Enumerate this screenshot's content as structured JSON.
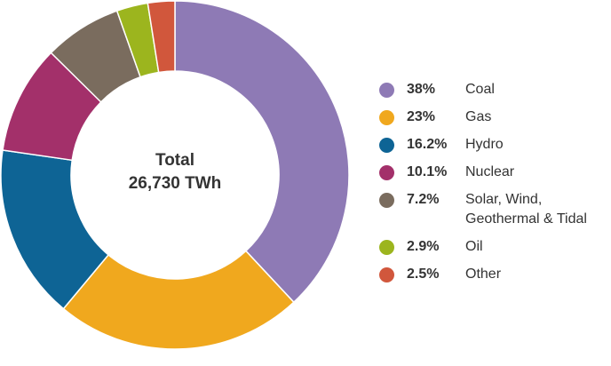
{
  "chart_data": {
    "type": "pie",
    "style": "donut",
    "center_label": [
      "Total",
      "26,730 TWh"
    ],
    "categories": [
      "Coal",
      "Gas",
      "Hydro",
      "Nuclear",
      "Solar, Wind, Geothermal & Tidal",
      "Oil",
      "Other"
    ],
    "values": [
      38,
      23,
      16.2,
      10.1,
      7.2,
      2.9,
      2.5
    ],
    "value_labels": [
      "38%",
      "23%",
      "16.2%",
      "10.1%",
      "7.2%",
      "2.9%",
      "2.5%"
    ],
    "colors": [
      "#8e7ab5",
      "#f0a81e",
      "#0e6495",
      "#a3306a",
      "#7a6c5e",
      "#9cb51e",
      "#d1573c"
    ],
    "legend_position": "right"
  }
}
